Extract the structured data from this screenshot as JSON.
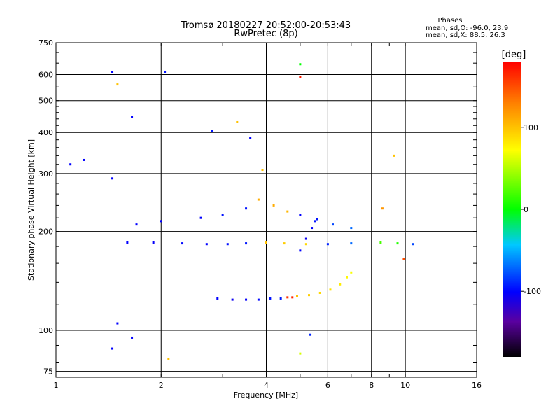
{
  "chart_data": {
    "type": "scatter",
    "title": "Tromsø 20180227 20:52:00-20:53:43",
    "subtitle": "RwPretec (8p)",
    "xlabel": "Frequency [MHz]",
    "ylabel": "Stationary phase Virtual Height [km]",
    "x_scale": "log",
    "y_scale": "log",
    "xlim": [
      1,
      16
    ],
    "ylim": [
      72,
      750
    ],
    "x_ticks": [
      1,
      2,
      4,
      6,
      8,
      10,
      16
    ],
    "x_tick_labels": [
      "1",
      "2",
      "4",
      "6",
      "8",
      "10",
      "16"
    ],
    "y_ticks": [
      75,
      100,
      200,
      300,
      400,
      500,
      600,
      750
    ],
    "y_tick_labels": [
      "75",
      "100",
      "200",
      "300",
      "400",
      "500",
      "600",
      "750"
    ],
    "grid": true,
    "phase_stats": {
      "title": "Phases",
      "line1": "mean, sd,O: -96.0, 23.9",
      "line2": "mean, sd,X: 88.5, 26.3"
    },
    "colorbar": {
      "label": "[deg]",
      "range": [
        -180,
        180
      ],
      "ticks": [
        100,
        0,
        -100
      ],
      "tick_labels": [
        "100",
        "0",
        "-100"
      ]
    },
    "series": [
      {
        "points": [
          [
            2.9,
            125,
            -100
          ],
          [
            3.2,
            124,
            -105
          ],
          [
            3.5,
            124,
            -102
          ],
          [
            3.8,
            124,
            -98
          ],
          [
            4.1,
            125,
            -95
          ],
          [
            4.4,
            125,
            -92
          ],
          [
            4.6,
            126,
            160
          ],
          [
            4.75,
            126,
            165
          ],
          [
            4.9,
            127,
            100
          ],
          [
            5.3,
            128,
            95
          ],
          [
            5.7,
            130,
            90
          ],
          [
            6.1,
            133,
            85
          ],
          [
            6.5,
            138,
            80
          ],
          [
            6.8,
            145,
            75
          ],
          [
            7.0,
            150,
            70
          ],
          [
            5.0,
            175,
            -100
          ],
          [
            5.2,
            190,
            -105
          ],
          [
            5.4,
            205,
            -100
          ],
          [
            5.6,
            218,
            -95
          ],
          [
            1.6,
            185,
            -100
          ],
          [
            1.9,
            185,
            -102
          ],
          [
            2.3,
            184,
            -98
          ],
          [
            2.7,
            183,
            -100
          ],
          [
            3.1,
            183,
            -96
          ],
          [
            3.5,
            184,
            -94
          ],
          [
            4.0,
            185,
            100
          ],
          [
            4.5,
            184,
            95
          ],
          [
            5.2,
            183,
            90
          ],
          [
            6.0,
            183,
            -90
          ],
          [
            7.0,
            184,
            -70
          ],
          [
            8.5,
            185,
            20
          ],
          [
            9.5,
            184,
            10
          ],
          [
            10.5,
            183,
            -80
          ],
          [
            1.7,
            210,
            -100
          ],
          [
            2.0,
            215,
            -100
          ],
          [
            2.6,
            220,
            -100
          ],
          [
            3.0,
            225,
            -95
          ],
          [
            3.5,
            235,
            -95
          ],
          [
            3.8,
            250,
            110
          ],
          [
            4.2,
            240,
            110
          ],
          [
            4.6,
            230,
            105
          ],
          [
            5.0,
            225,
            -100
          ],
          [
            5.5,
            215,
            -95
          ],
          [
            6.2,
            210,
            -80
          ],
          [
            7.0,
            205,
            -70
          ],
          [
            3.9,
            308,
            100
          ],
          [
            3.3,
            430,
            100
          ],
          [
            3.6,
            385,
            -100
          ],
          [
            2.8,
            405,
            -95
          ],
          [
            1.45,
            610,
            -100
          ],
          [
            2.05,
            612,
            -95
          ],
          [
            5.0,
            590,
            170
          ],
          [
            5.0,
            645,
            0
          ],
          [
            1.5,
            560,
            100
          ],
          [
            1.65,
            445,
            -100
          ],
          [
            1.45,
            290,
            -100
          ],
          [
            1.2,
            330,
            -100
          ],
          [
            1.1,
            320,
            -100
          ],
          [
            1.5,
            105,
            -100
          ],
          [
            1.65,
            95,
            -100
          ],
          [
            1.45,
            88,
            -100
          ],
          [
            5.0,
            85,
            60
          ],
          [
            5.35,
            97,
            -90
          ],
          [
            2.1,
            82,
            100
          ],
          [
            9.3,
            340,
            100
          ],
          [
            9.9,
            165,
            150
          ],
          [
            8.6,
            235,
            120
          ]
        ]
      }
    ]
  }
}
